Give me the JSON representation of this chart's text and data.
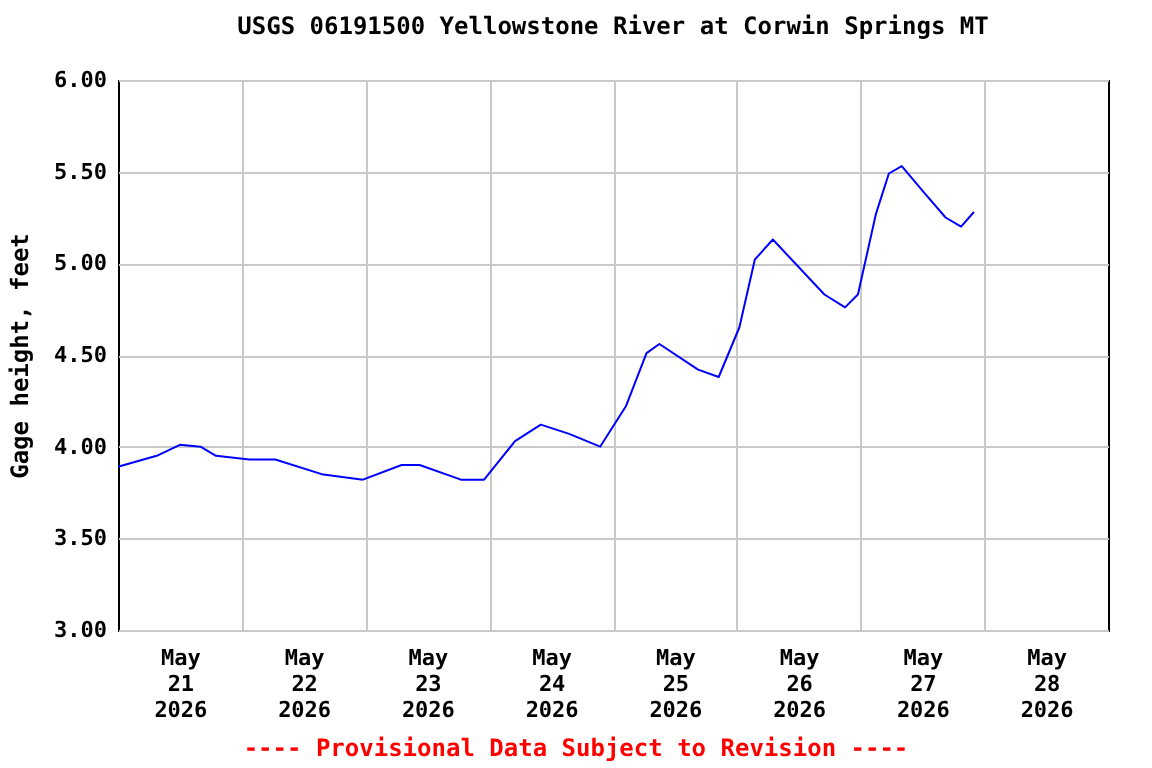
{
  "chart_data": {
    "type": "line",
    "title": "USGS 06191500 Yellowstone River at Corwin Springs MT",
    "ylabel": "Gage height, feet",
    "annotations": [
      "---- Provisional Data Subject to Revision ----"
    ],
    "xlim": [
      "2026-05-21T00:00",
      "2026-05-29T00:00"
    ],
    "xticks": [
      {
        "value": "2026-05-21T12:00",
        "label": "May 21 2026"
      },
      {
        "value": "2026-05-22T12:00",
        "label": "May 22 2026"
      },
      {
        "value": "2026-05-23T12:00",
        "label": "May 23 2026"
      },
      {
        "value": "2026-05-24T12:00",
        "label": "May 24 2026"
      },
      {
        "value": "2026-05-25T12:00",
        "label": "May 25 2026"
      },
      {
        "value": "2026-05-26T12:00",
        "label": "May 26 2026"
      },
      {
        "value": "2026-05-27T12:00",
        "label": "May 27 2026"
      },
      {
        "value": "2026-05-28T12:00",
        "label": "May 28 2026"
      },
      {
        "value": "2026-05-22T00:00",
        "label": null
      },
      {
        "value": "2026-05-23T00:00",
        "label": null
      },
      {
        "value": "2026-05-24T00:00",
        "label": null
      },
      {
        "value": "2026-05-25T00:00",
        "label": null
      },
      {
        "value": "2026-05-26T00:00",
        "label": null
      },
      {
        "value": "2026-05-27T00:00",
        "label": null
      },
      {
        "value": "2026-05-28T00:00",
        "label": null
      }
    ],
    "ylim": [
      3,
      6
    ],
    "yticks": [
      {
        "value": 3,
        "label": "3.00"
      },
      {
        "value": 3.5,
        "label": "3.50"
      },
      {
        "value": 4,
        "label": "4.00"
      },
      {
        "value": 4.5,
        "label": "4.50"
      },
      {
        "value": 5,
        "label": "5.00"
      },
      {
        "value": 5.5,
        "label": "5.50"
      },
      {
        "value": 6,
        "label": "6.00"
      }
    ],
    "grid": true,
    "marker": "none",
    "line_style": "solid",
    "series": [
      {
        "color": "#0000ff",
        "x": [
          "2026-05-21T00:00",
          "2026-05-21T07:30",
          "2026-05-21T12:00",
          "2026-05-21T16:00",
          "2026-05-21T19:00",
          "2026-05-22T01:30",
          "2026-05-22T06:30",
          "2026-05-22T15:30",
          "2026-05-22T23:30",
          "2026-05-23T07:00",
          "2026-05-23T10:30",
          "2026-05-23T18:30",
          "2026-05-23T23:00",
          "2026-05-24T05:00",
          "2026-05-24T10:00",
          "2026-05-24T15:30",
          "2026-05-24T21:30",
          "2026-05-25T02:30",
          "2026-05-25T06:30",
          "2026-05-25T09:00",
          "2026-05-25T16:30",
          "2026-05-25T20:30",
          "2026-05-26T00:30",
          "2026-05-26T03:30",
          "2026-05-26T07:00",
          "2026-05-26T12:00",
          "2026-05-26T17:00",
          "2026-05-26T21:00",
          "2026-05-26T23:30",
          "2026-05-27T03:00",
          "2026-05-27T05:30",
          "2026-05-27T08:00",
          "2026-05-27T12:30",
          "2026-05-27T16:30",
          "2026-05-27T19:30",
          "2026-05-27T22:00"
        ],
        "values": [
          3.89,
          3.95,
          4.01,
          4.0,
          3.95,
          3.93,
          3.93,
          3.85,
          3.82,
          3.9,
          3.9,
          3.82,
          3.82,
          4.03,
          4.12,
          4.07,
          4.0,
          4.22,
          4.51,
          4.56,
          4.42,
          4.38,
          4.65,
          5.02,
          5.13,
          4.98,
          4.83,
          4.76,
          4.83,
          5.27,
          5.49,
          5.53,
          5.38,
          5.25,
          5.2,
          5.28
        ]
      }
    ]
  }
}
